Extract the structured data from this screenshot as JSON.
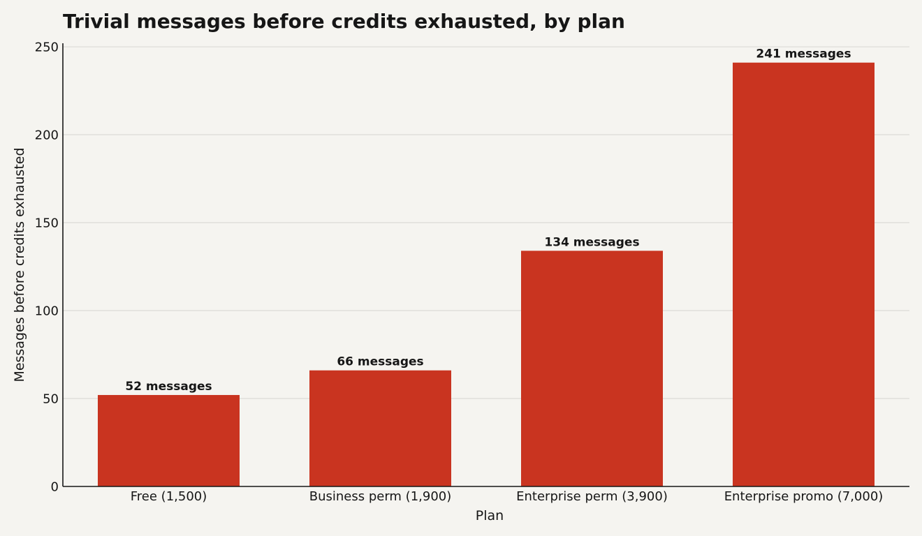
{
  "colors": {
    "background": "#f5f4f0",
    "bar": "#c93420",
    "text": "#161616",
    "grid": "#dcdbd6"
  },
  "chart_data": {
    "type": "bar",
    "title": "Trivial messages before credits exhausted, by plan",
    "xlabel": "Plan",
    "ylabel": "Messages before credits exhausted",
    "categories": [
      "Free (1,500)",
      "Business perm (1,900)",
      "Enterprise perm (3,900)",
      "Enterprise promo (7,000)"
    ],
    "values": [
      52,
      66,
      134,
      241
    ],
    "data_labels": [
      "52 messages",
      "66 messages",
      "134 messages",
      "241 messages"
    ],
    "ylim": [
      0,
      252
    ],
    "yticks": [
      0,
      50,
      100,
      150,
      200,
      250
    ],
    "grid": true,
    "legend": "none"
  }
}
